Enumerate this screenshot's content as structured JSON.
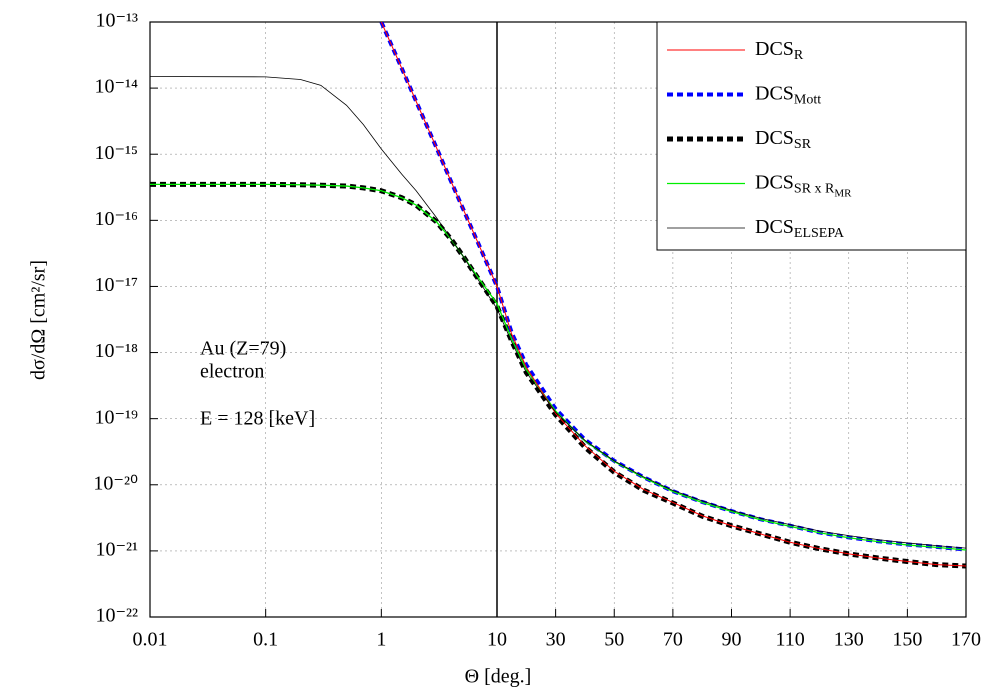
{
  "chart_data": {
    "type": "line",
    "x_label": "Θ [deg.]",
    "y_label": "dσ/dΩ [cm²/sr]",
    "annotations": [
      "Au (Z=79)",
      "electron",
      "E = 128 [keV]"
    ],
    "x_scale": "log-linear",
    "x_break": 10,
    "y_scale": "log",
    "xlim": [
      0.01,
      170
    ],
    "ylim": [
      1e-22,
      1e-13
    ],
    "xticks": [
      0.01,
      0.1,
      1,
      10,
      30,
      50,
      70,
      90,
      110,
      130,
      150,
      170
    ],
    "yticks": [
      {
        "value": 1e-13,
        "label": "10⁻¹³"
      },
      {
        "value": 1e-14,
        "label": "10⁻¹⁴"
      },
      {
        "value": 1e-15,
        "label": "10⁻¹⁵"
      },
      {
        "value": 1e-16,
        "label": "10⁻¹⁶"
      },
      {
        "value": 1e-17,
        "label": "10⁻¹⁷"
      },
      {
        "value": 1e-18,
        "label": "10⁻¹⁸"
      },
      {
        "value": 1e-19,
        "label": "10⁻¹⁹"
      },
      {
        "value": 1e-20,
        "label": "10⁻²⁰"
      },
      {
        "value": 1e-21,
        "label": "10⁻²¹"
      },
      {
        "value": 1e-22,
        "label": "10⁻²²"
      }
    ],
    "grid": true,
    "legend": "top-right",
    "x": [
      0.01,
      0.1,
      0.2,
      0.3,
      0.5,
      0.7,
      1,
      1.5,
      2,
      3,
      4,
      5,
      7,
      10,
      15,
      20,
      30,
      40,
      50,
      60,
      70,
      80,
      90,
      100,
      110,
      120,
      130,
      140,
      150,
      160,
      170
    ],
    "series": [
      {
        "name": "DCS",
        "subscript": "R",
        "color": "#ff0000",
        "dashed": false,
        "width": 1,
        "values": [
          null,
          null,
          null,
          null,
          null,
          null,
          1e-13,
          2e-14,
          6.3e-15,
          1.25e-15,
          3.9e-16,
          1.6e-16,
          4.2e-17,
          1e-17,
          1.9e-18,
          6e-19,
          1.2e-19,
          3.9e-20,
          1.6e-20,
          8.5e-21,
          5.4e-21,
          3.4e-21,
          2.4e-21,
          1.8e-21,
          1.35e-21,
          1.08e-21,
          9e-22,
          7.8e-22,
          6.9e-22,
          6.2e-22,
          5.9e-22
        ]
      },
      {
        "name": "DCS",
        "subscript": "Mott",
        "color": "#0000ff",
        "dashed": true,
        "width": 4,
        "values": [
          null,
          null,
          null,
          null,
          null,
          null,
          1e-13,
          2e-14,
          6.3e-15,
          1.25e-15,
          3.9e-16,
          1.6e-16,
          4.2e-17,
          1e-17,
          2e-18,
          6.5e-19,
          1.4e-19,
          4.8e-20,
          2.3e-20,
          1.3e-20,
          8e-21,
          5.5e-21,
          4e-21,
          3e-21,
          2.4e-21,
          1.9e-21,
          1.6e-21,
          1.4e-21,
          1.25e-21,
          1.15e-21,
          1.05e-21
        ]
      },
      {
        "name": "DCS",
        "subscript": "SR",
        "color": "#000000",
        "dashed": true,
        "width": 5,
        "values": [
          3.5e-16,
          3.5e-16,
          3.45e-16,
          3.4e-16,
          3.3e-16,
          3.1e-16,
          2.8e-16,
          2.2e-16,
          1.7e-16,
          9.5e-17,
          5.2e-17,
          3e-17,
          1.25e-17,
          5e-18,
          1.5e-18,
          5e-19,
          1.15e-19,
          3.7e-20,
          1.55e-20,
          8.3e-21,
          5.3e-21,
          3.35e-21,
          2.4e-21,
          1.8e-21,
          1.35e-21,
          1.08e-21,
          9e-22,
          7.8e-22,
          6.9e-22,
          6.2e-22,
          5.9e-22
        ]
      },
      {
        "name": "DCS",
        "subscript": "SR x R",
        "subsubscript": "MR",
        "color": "#00ee00",
        "dashed": false,
        "width": 1.3,
        "values": [
          3.5e-16,
          3.5e-16,
          3.45e-16,
          3.4e-16,
          3.3e-16,
          3.1e-16,
          2.8e-16,
          2.2e-16,
          1.7e-16,
          9.5e-17,
          5.2e-17,
          3e-17,
          1.3e-17,
          5.5e-18,
          1.6e-18,
          5.5e-19,
          1.3e-19,
          4.6e-20,
          2.25e-20,
          1.28e-20,
          7.9e-21,
          5.4e-21,
          3.95e-21,
          2.95e-21,
          2.35e-21,
          1.88e-21,
          1.58e-21,
          1.38e-21,
          1.23e-21,
          1.13e-21,
          1.03e-21
        ]
      },
      {
        "name": "DCS",
        "subscript": "ELSEPA",
        "color": "#000000",
        "dashed": false,
        "width": 0.8,
        "values": [
          1.5e-14,
          1.48e-14,
          1.35e-14,
          1.1e-14,
          5.5e-15,
          2.8e-15,
          1.2e-15,
          5e-16,
          2.8e-16,
          1.1e-16,
          5.3e-17,
          3e-17,
          1.2e-17,
          4.6e-18,
          1.45e-18,
          5e-19,
          1.25e-19,
          4.7e-20,
          2.3e-20,
          1.32e-20,
          8.2e-21,
          5.7e-21,
          4.1e-21,
          3.1e-21,
          2.5e-21,
          2e-21,
          1.7e-21,
          1.48e-21,
          1.32e-21,
          1.2e-21,
          1.1e-21
        ]
      }
    ]
  }
}
